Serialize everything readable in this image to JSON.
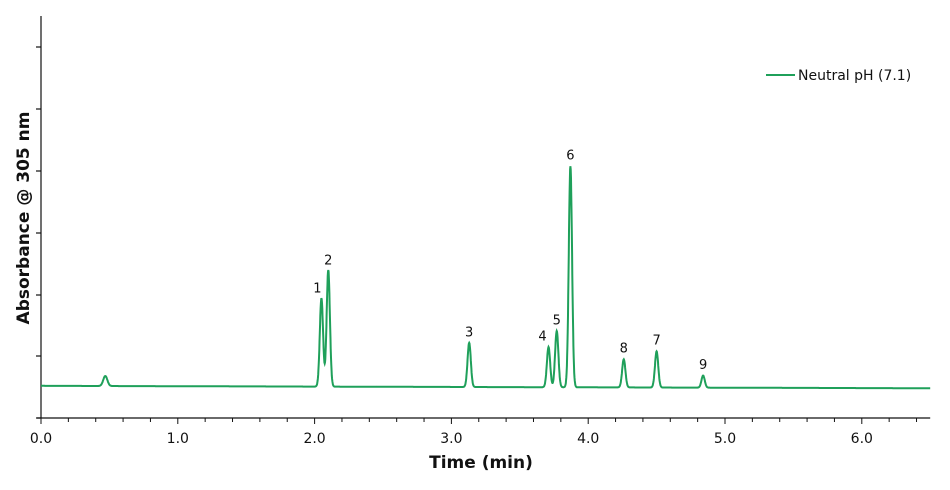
{
  "colors": {
    "series": "#1fa05a",
    "axis": "#111111",
    "background": "#ffffff"
  },
  "chart_data": {
    "type": "line",
    "title": "",
    "xlabel": "Time (min)",
    "ylabel": "Absorbance @ 305 nm",
    "xlim": [
      0.0,
      6.5
    ],
    "ylim": [
      0,
      1
    ],
    "x_ticks": [
      "0.0",
      "1.0",
      "2.0",
      "3.0",
      "4.0",
      "5.0",
      "6.0"
    ],
    "y_tick_labels_shown": false,
    "grid": false,
    "legend_position": "top-right",
    "series": [
      {
        "name": "Neutral pH (7.1)",
        "baseline": 0.08,
        "peaks": [
          {
            "label": "",
            "time": 0.47,
            "height": 0.105
          },
          {
            "label": "1",
            "time": 2.05,
            "height": 0.3
          },
          {
            "label": "2",
            "time": 2.1,
            "height": 0.37
          },
          {
            "label": "3",
            "time": 3.13,
            "height": 0.19
          },
          {
            "label": "4",
            "time": 3.71,
            "height": 0.18
          },
          {
            "label": "5",
            "time": 3.77,
            "height": 0.22
          },
          {
            "label": "6",
            "time": 3.87,
            "height": 0.63
          },
          {
            "label": "8",
            "time": 4.26,
            "height": 0.15
          },
          {
            "label": "7",
            "time": 4.5,
            "height": 0.17
          },
          {
            "label": "9",
            "time": 4.84,
            "height": 0.11
          }
        ]
      }
    ]
  },
  "legend": {
    "items": [
      {
        "label": "Neutral pH (7.1)"
      }
    ]
  }
}
